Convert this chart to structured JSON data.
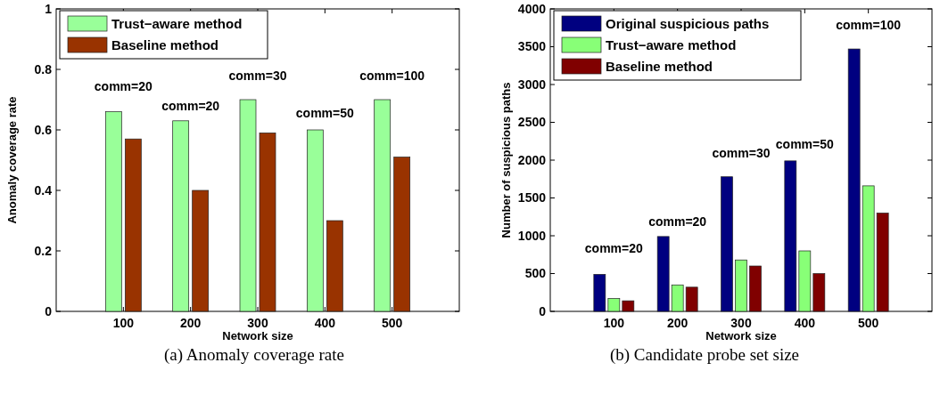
{
  "chart_data": [
    {
      "type": "bar",
      "title": "(a) Anomaly coverage rate",
      "xlabel": "Network size",
      "ylabel": "Anomaly coverage rate",
      "categories": [
        "100",
        "200",
        "300",
        "400",
        "500"
      ],
      "series": [
        {
          "name": "Trust−aware method",
          "color": "#99ff99",
          "values": [
            0.66,
            0.63,
            0.7,
            0.6,
            0.7
          ]
        },
        {
          "name": "Baseline method",
          "color": "#993300",
          "values": [
            0.57,
            0.4,
            0.59,
            0.3,
            0.51
          ]
        }
      ],
      "ylim": [
        0,
        1
      ],
      "yticks": [
        0,
        0.2,
        0.4,
        0.6,
        0.8,
        1
      ],
      "grid": false,
      "legend": "top left",
      "annotations": [
        "comm=20",
        "comm=20",
        "comm=30",
        "comm=50",
        "comm=100"
      ]
    },
    {
      "type": "bar",
      "title": "(b) Candidate probe set size",
      "xlabel": "Network size",
      "ylabel": "Number of suspicious paths",
      "categories": [
        "100",
        "200",
        "300",
        "400",
        "500"
      ],
      "series": [
        {
          "name": "Original suspicious paths",
          "color": "#000080",
          "values": [
            490,
            990,
            1780,
            1990,
            3470
          ]
        },
        {
          "name": "Trust−aware method",
          "color": "#88ff77",
          "values": [
            170,
            350,
            680,
            800,
            1660
          ]
        },
        {
          "name": "Baseline method",
          "color": "#800000",
          "values": [
            140,
            320,
            600,
            500,
            1300
          ]
        }
      ],
      "ylim": [
        0,
        4000
      ],
      "yticks": [
        0,
        500,
        1000,
        1500,
        2000,
        2500,
        3000,
        3500,
        4000
      ],
      "grid": false,
      "legend": "top left",
      "annotations": [
        "comm=20",
        "comm=20",
        "comm=30",
        "comm=50",
        "comm=100"
      ]
    }
  ]
}
